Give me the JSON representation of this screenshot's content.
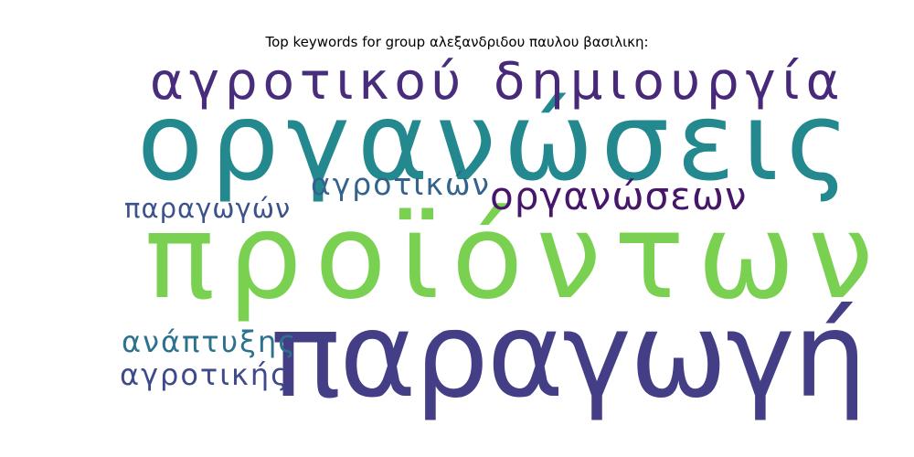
{
  "title": "Top keywords for group αλεξανδριδου παυλου βασιλικη:",
  "words": {
    "paragogi": {
      "text": "παραγωγή",
      "color": "#433e85"
    },
    "proionton": {
      "text": "προϊόντων",
      "color": "#7ad151"
    },
    "organoseis": {
      "text": "οργανώσεις",
      "color": "#23898e"
    },
    "agrotikou": {
      "text": "αγροτικού",
      "color": "#472d7b"
    },
    "dimiourgia": {
      "text": "δημιουργία",
      "color": "#482878"
    },
    "organoseon": {
      "text": "οργανώσεων",
      "color": "#46166b"
    },
    "agrotikon": {
      "text": "αγροτικών",
      "color": "#33638d"
    },
    "paragogon": {
      "text": "παραγωγών",
      "color": "#3b528b"
    },
    "anaptyxis": {
      "text": "ανάπτυξης",
      "color": "#2c728e"
    },
    "agrotikis": {
      "text": "αγροτικής",
      "color": "#3e4a89"
    }
  }
}
